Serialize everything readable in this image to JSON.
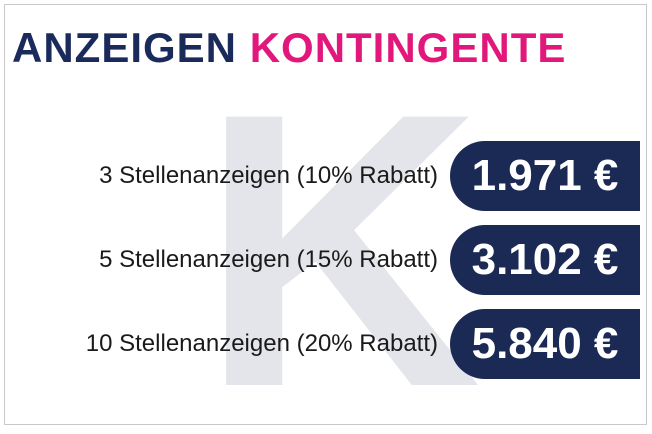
{
  "headline": {
    "part1": "ANZEIGEN",
    "part2": "KONTINGENTE"
  },
  "watermark": "K",
  "colors": {
    "navy": "#1a2a5a",
    "pink": "#e2177b",
    "watermark": "#e4e5ea"
  },
  "packages": [
    {
      "label": "3 Stellenanzeigen (10% Rabatt)",
      "price": "1.971 €"
    },
    {
      "label": "5 Stellenanzeigen (15% Rabatt)",
      "price": "3.102 €"
    },
    {
      "label": "10 Stellenanzeigen (20% Rabatt)",
      "price": "5.840 €"
    }
  ]
}
